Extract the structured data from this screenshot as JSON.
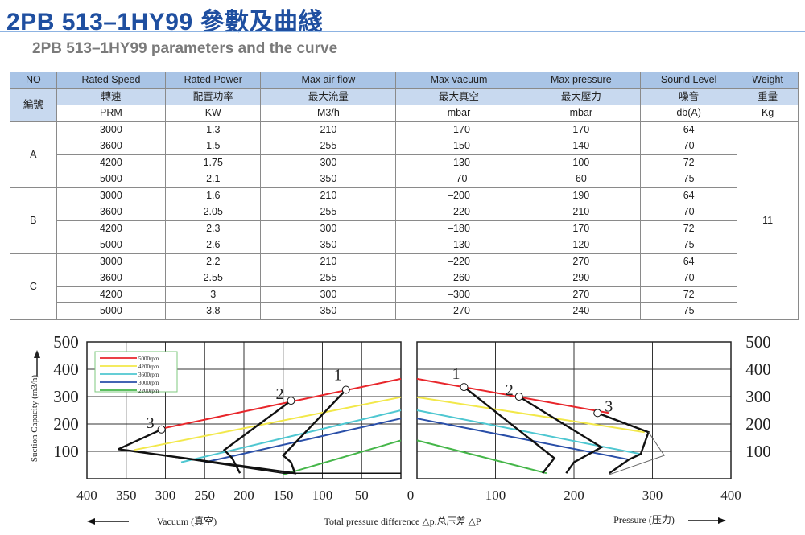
{
  "page": {
    "title": "2PB 513–1HY99 參數及曲綫",
    "subtitle": "2PB 513–1HY99 parameters and the curve"
  },
  "table": {
    "header_en": [
      "NO",
      "Rated Speed",
      "Rated Power",
      "Max air flow",
      "Max vacuum",
      "Max pressure",
      "Sound Level",
      "Weight"
    ],
    "header_zh": [
      "編號",
      "轉速",
      "配置功率",
      "最大流量",
      "最大真空",
      "最大壓力",
      "噪音",
      "重量"
    ],
    "units": [
      "PRM",
      "KW",
      "M3/h",
      "mbar",
      "mbar",
      "db(A)",
      "Kg"
    ],
    "groups": [
      {
        "label": "A",
        "rows": [
          [
            "3000",
            "1.3",
            "210",
            "–170",
            "170",
            "64"
          ],
          [
            "3600",
            "1.5",
            "255",
            "–150",
            "140",
            "70"
          ],
          [
            "4200",
            "1.75",
            "300",
            "–130",
            "100",
            "72"
          ],
          [
            "5000",
            "2.1",
            "350",
            "–70",
            "60",
            "75"
          ]
        ]
      },
      {
        "label": "B",
        "rows": [
          [
            "3000",
            "1.6",
            "210",
            "–200",
            "190",
            "64"
          ],
          [
            "3600",
            "2.05",
            "255",
            "–220",
            "210",
            "70"
          ],
          [
            "4200",
            "2.3",
            "300",
            "–180",
            "170",
            "72"
          ],
          [
            "5000",
            "2.6",
            "350",
            "–130",
            "120",
            "75"
          ]
        ]
      },
      {
        "label": "C",
        "rows": [
          [
            "3000",
            "2.2",
            "210",
            "–220",
            "270",
            "64"
          ],
          [
            "3600",
            "2.55",
            "255",
            "–260",
            "290",
            "70"
          ],
          [
            "4200",
            "3",
            "300",
            "–300",
            "270",
            "72"
          ],
          [
            "5000",
            "3.8",
            "350",
            "–270",
            "240",
            "75"
          ]
        ]
      }
    ],
    "weight": "11"
  },
  "chart_data": {
    "type": "line",
    "ylabel": "Suction Capacity (m3/h)",
    "y_ticks": [
      "500",
      "400",
      "300",
      "200",
      "100"
    ],
    "ylim": [
      0,
      500
    ],
    "vacuum_ticks": [
      "400",
      "350",
      "300",
      "250",
      "200",
      "150",
      "100",
      "50"
    ],
    "zero_tick": "0",
    "pressure_ticks": [
      "100",
      "200",
      "300",
      "400"
    ],
    "legend": [
      {
        "name": "5000rpm",
        "color": "#e8262b"
      },
      {
        "name": "4200rpm",
        "color": "#f2e84a"
      },
      {
        "name": "3600rpm",
        "color": "#4fc7d1"
      },
      {
        "name": "3000rpm",
        "color": "#2a4fa8"
      },
      {
        "name": "2200rpm",
        "color": "#45b649"
      }
    ],
    "vacuum_series": [
      {
        "color": "#e8262b",
        "points": [
          [
            310,
            180
          ],
          [
            0,
            365
          ]
        ]
      },
      {
        "color": "#f2e84a",
        "points": [
          [
            340,
            105
          ],
          [
            0,
            298
          ]
        ]
      },
      {
        "color": "#4fc7d1",
        "points": [
          [
            280,
            60
          ],
          [
            0,
            250
          ]
        ]
      },
      {
        "color": "#2a4fa8",
        "points": [
          [
            250,
            60
          ],
          [
            0,
            220
          ]
        ]
      },
      {
        "color": "#45b649",
        "points": [
          [
            150,
            15
          ],
          [
            0,
            140
          ]
        ]
      }
    ],
    "pressure_series": [
      {
        "color": "#e8262b",
        "points": [
          [
            0,
            365
          ],
          [
            245,
            240
          ]
        ]
      },
      {
        "color": "#f2e84a",
        "points": [
          [
            0,
            298
          ],
          [
            290,
            170
          ]
        ]
      },
      {
        "color": "#4fc7d1",
        "points": [
          [
            0,
            250
          ],
          [
            285,
            90
          ]
        ]
      },
      {
        "color": "#2a4fa8",
        "points": [
          [
            0,
            220
          ],
          [
            270,
            70
          ]
        ]
      },
      {
        "color": "#45b649",
        "points": [
          [
            0,
            140
          ],
          [
            165,
            20
          ]
        ]
      }
    ],
    "vacuum_limits": [
      {
        "label": "1",
        "points": [
          [
            70,
            325
          ],
          [
            150,
            85
          ],
          [
            140,
            60
          ],
          [
            135,
            20
          ],
          [
            360,
            108
          ]
        ]
      },
      {
        "label": "2",
        "points": [
          [
            140,
            285
          ],
          [
            225,
            105
          ],
          [
            215,
            75
          ],
          [
            205,
            20
          ]
        ]
      },
      {
        "label": "3",
        "points": [
          [
            305,
            180
          ],
          [
            360,
            108
          ]
        ]
      }
    ],
    "pressure_limits": [
      {
        "label": "1",
        "points": [
          [
            60,
            335
          ],
          [
            175,
            75
          ],
          [
            160,
            20
          ]
        ]
      },
      {
        "label": "2",
        "points": [
          [
            130,
            300
          ],
          [
            235,
            115
          ],
          [
            200,
            60
          ],
          [
            190,
            20
          ]
        ]
      },
      {
        "label": "3",
        "points": [
          [
            230,
            240
          ],
          [
            295,
            170
          ],
          [
            285,
            90
          ],
          [
            270,
            70
          ],
          [
            245,
            20
          ]
        ]
      }
    ],
    "axis_captions": {
      "vacuum": "Vacuum (真空)",
      "total": "Total pressure difference △p.总压差 △P",
      "pressure": "Pressure (压力)"
    }
  }
}
